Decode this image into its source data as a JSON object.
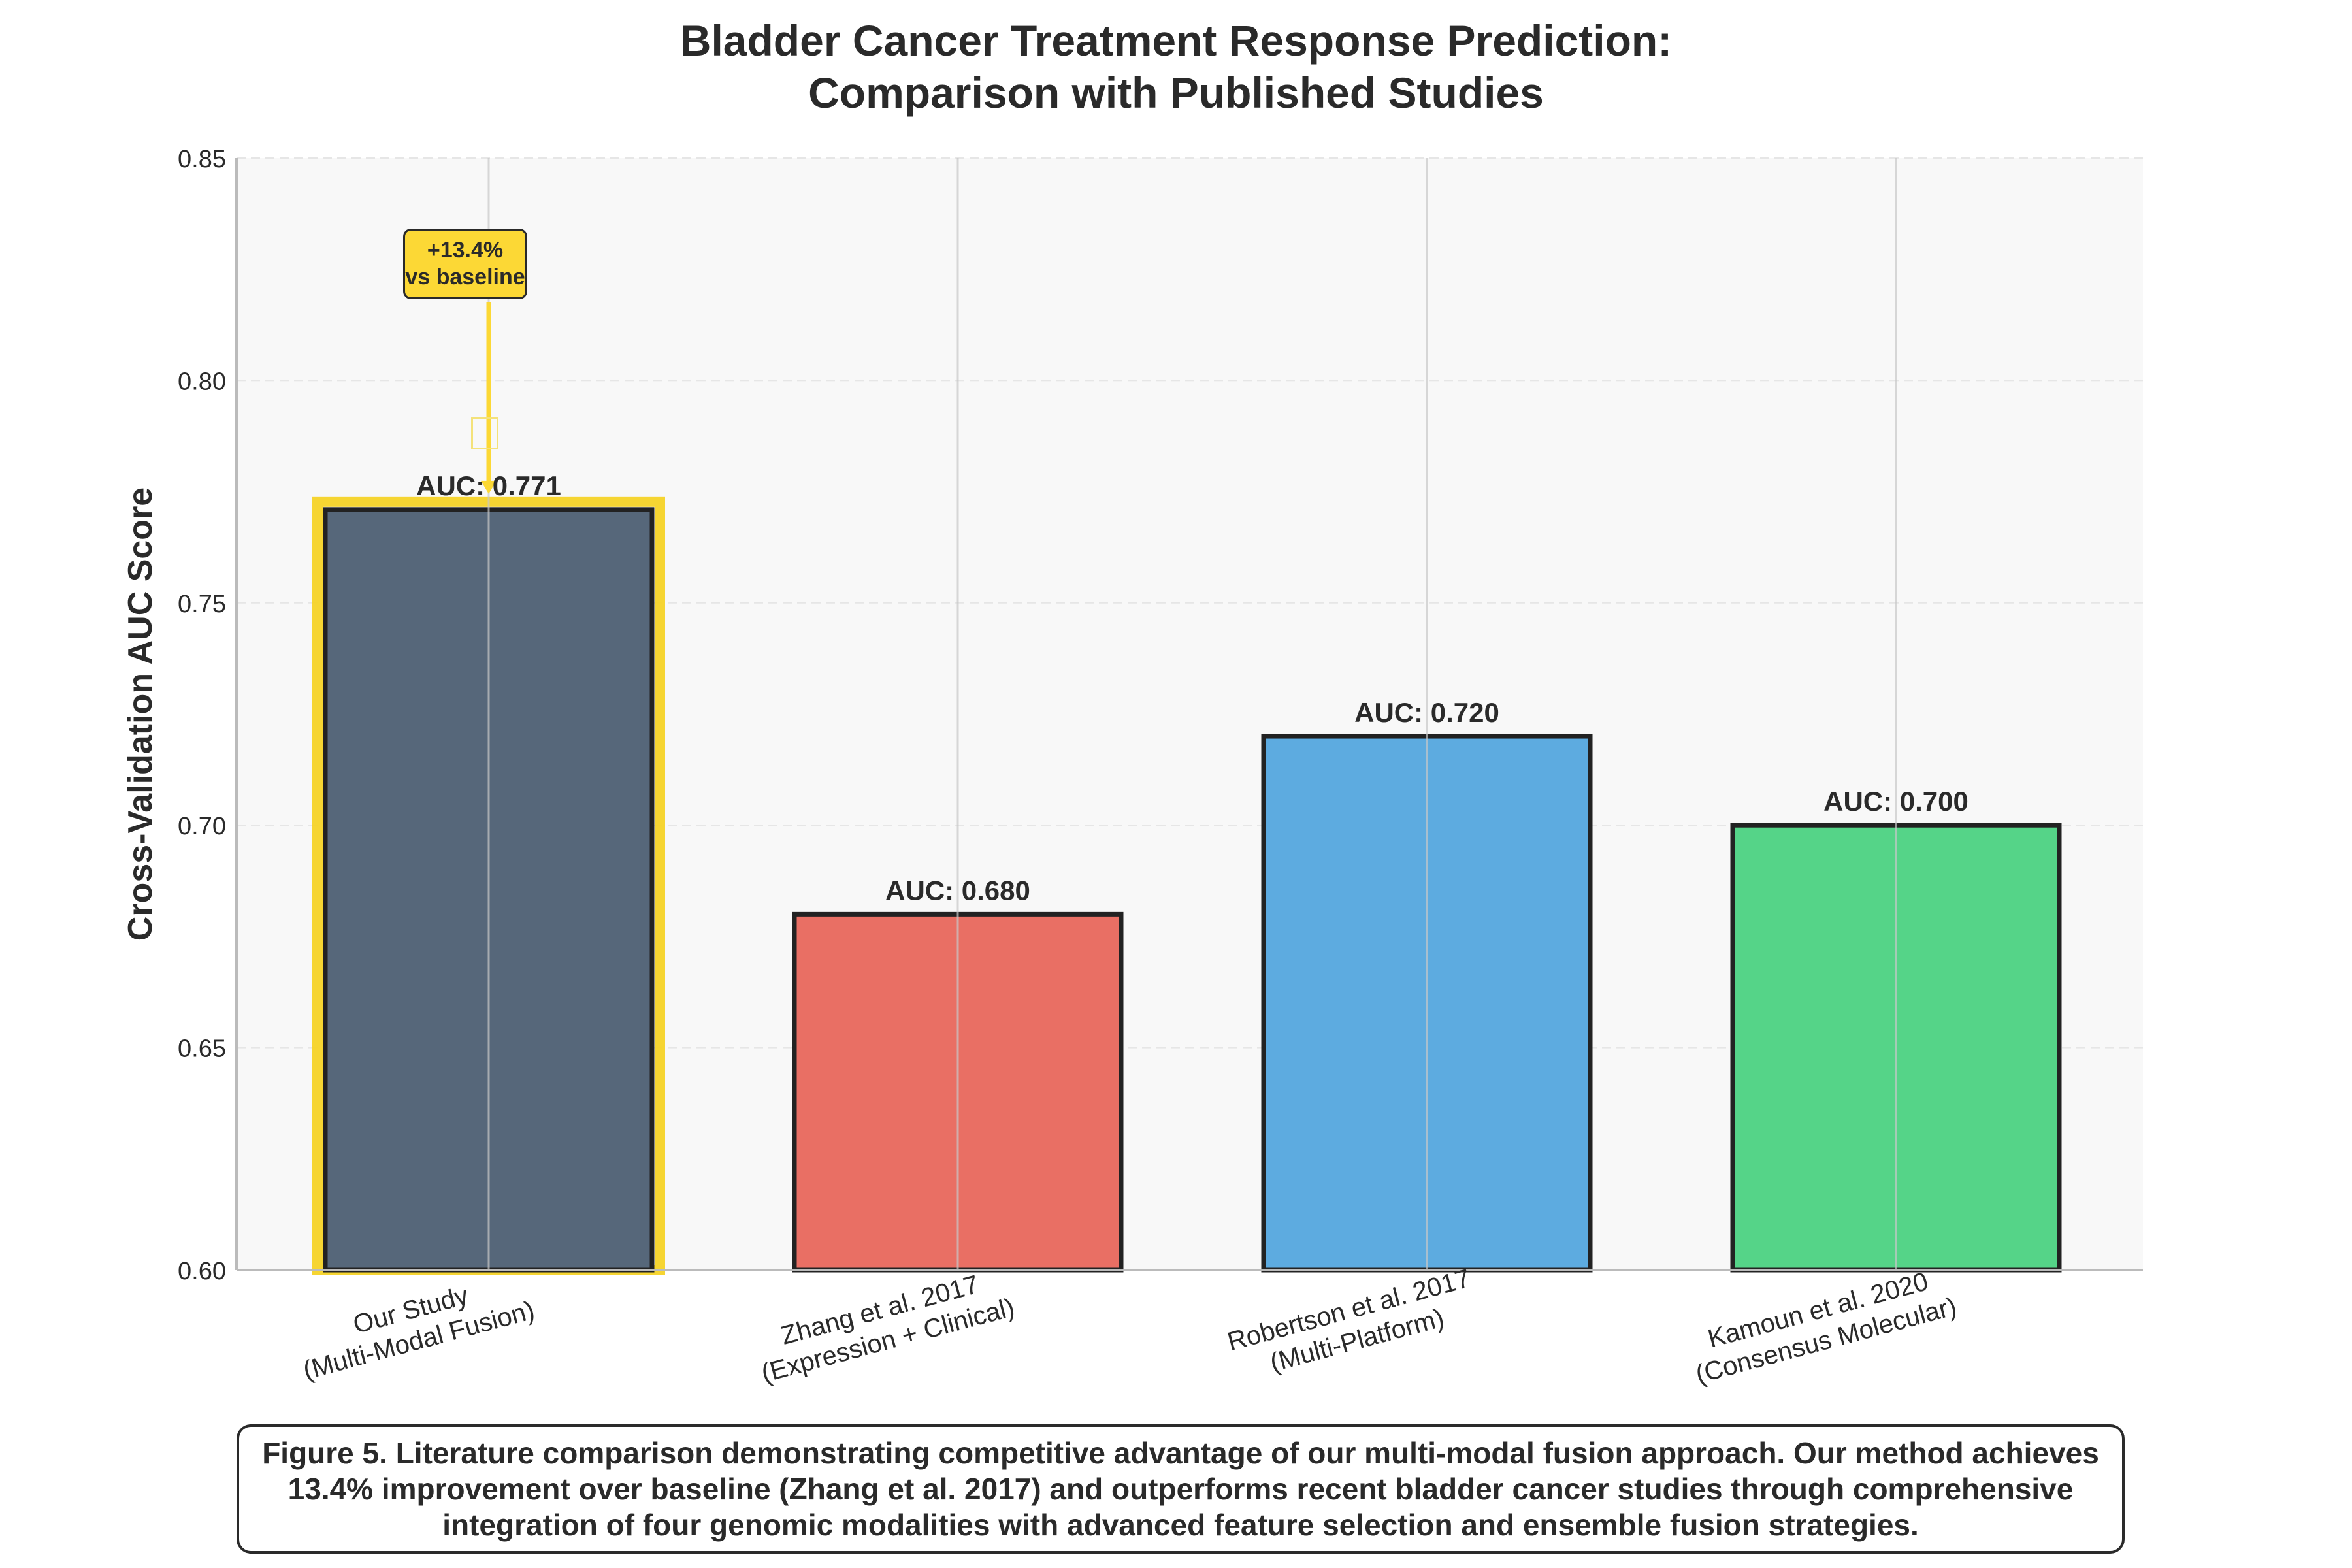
{
  "chart_data": {
    "type": "bar",
    "title": "Bladder Cancer Treatment Response Prediction:",
    "subtitle": "Comparison with Published Studies",
    "xlabel": "",
    "ylabel": "Cross-Validation AUC Score",
    "ylim": [
      0.6,
      0.85
    ],
    "yticks": [
      "0.60",
      "0.65",
      "0.70",
      "0.75",
      "0.80",
      "0.85"
    ],
    "grid": true,
    "categories": [
      [
        "Our Study",
        "(Multi-Modal Fusion)"
      ],
      [
        "Zhang et al. 2017",
        "(Expression + Clinical)"
      ],
      [
        "Robertson et al. 2017",
        "(Multi-Platform)"
      ],
      [
        "Kamoun et al. 2020",
        "(Consensus Molecular)"
      ]
    ],
    "values": [
      0.771,
      0.68,
      0.72,
      0.7
    ],
    "bar_labels": [
      "AUC: 0.771",
      "AUC: 0.680",
      "AUC: 0.720",
      "AUC: 0.700"
    ],
    "colors": [
      "#56677a",
      "#e96f64",
      "#5dabe0",
      "#55d488"
    ],
    "highlight_color": "#f5d327",
    "annotation": {
      "line1": "+13.4%",
      "line2": "vs baseline",
      "color": "#fcd835"
    },
    "caption": "Figure 5. Literature comparison demonstrating competitive advantage of our multi-modal fusion approach. Our method achieves 13.4% improvement over baseline (Zhang et al. 2017) and outperforms recent bladder cancer studies through comprehensive integration of four genomic modalities with advanced feature selection and ensemble fusion strategies."
  }
}
